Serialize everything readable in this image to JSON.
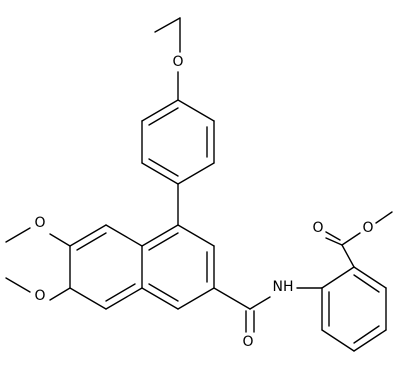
{
  "atoms": [
    {
      "label": "O"
    },
    {
      "label": "O"
    },
    {
      "label": "O"
    },
    {
      "label": "NH"
    },
    {
      "label": "O"
    },
    {
      "label": "O"
    },
    {
      "label": "O"
    }
  ]
}
